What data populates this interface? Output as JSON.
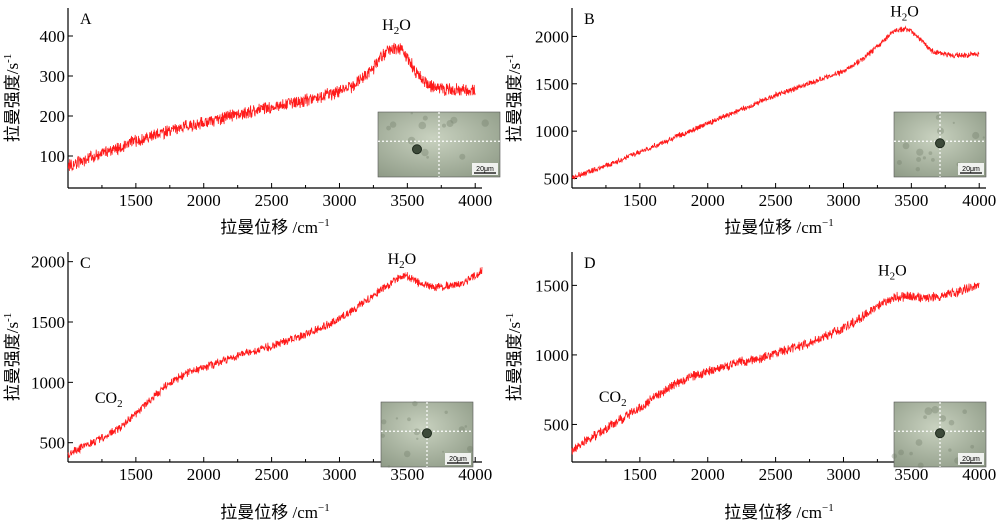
{
  "figure": {
    "xlabel": "拉曼位移 /cm",
    "xlabel_sup": "−1",
    "ylabel": "拉曼强度/s",
    "ylabel_sup": "-1",
    "scale_bar_label": "20μm",
    "spectrum_color": "#ff1a1a"
  },
  "chart_data": [
    {
      "type": "line",
      "panel": "A",
      "xlim": [
        1000,
        4050
      ],
      "ylim": [
        20,
        470
      ],
      "xticks": [
        1500,
        2000,
        2500,
        3000,
        3500,
        4000
      ],
      "yticks": [
        100,
        200,
        300,
        400
      ],
      "grid": false,
      "series": [
        {
          "x": [
            1000,
            1100,
            1200,
            1300,
            1400,
            1500,
            1600,
            1700,
            1800,
            1900,
            2000,
            2100,
            2200,
            2300,
            2400,
            2500,
            2600,
            2700,
            2800,
            2900,
            3000,
            3100,
            3200,
            3250,
            3300,
            3350,
            3400,
            3450,
            3500,
            3550,
            3600,
            3650,
            3700,
            3750,
            3800,
            3850,
            3900,
            3950,
            4000
          ],
          "y": [
            75,
            88,
            100,
            112,
            125,
            138,
            148,
            158,
            168,
            176,
            184,
            192,
            200,
            207,
            214,
            221,
            229,
            236,
            244,
            252,
            262,
            275,
            300,
            320,
            345,
            365,
            372,
            365,
            345,
            318,
            295,
            280,
            272,
            268,
            266,
            265,
            264,
            264,
            263
          ],
          "noise": 14
        }
      ],
      "annotations": [
        {
          "text": "H",
          "sub": "2",
          "tail": "O",
          "x": 3420,
          "y": 415
        }
      ]
    },
    {
      "type": "line",
      "panel": "B",
      "xlim": [
        1000,
        4050
      ],
      "ylim": [
        400,
        2300
      ],
      "xticks": [
        1500,
        2000,
        2500,
        3000,
        3500,
        4000
      ],
      "yticks": [
        500,
        1000,
        1500,
        2000
      ],
      "grid": false,
      "series": [
        {
          "x": [
            1000,
            1100,
            1200,
            1300,
            1400,
            1500,
            1600,
            1700,
            1800,
            1900,
            2000,
            2100,
            2200,
            2300,
            2400,
            2500,
            2600,
            2700,
            2800,
            2900,
            3000,
            3100,
            3200,
            3300,
            3350,
            3400,
            3450,
            3500,
            3550,
            3600,
            3650,
            3700,
            3750,
            3800,
            3850,
            3900,
            3950,
            4000
          ],
          "y": [
            510,
            560,
            610,
            660,
            720,
            780,
            840,
            900,
            960,
            1020,
            1080,
            1140,
            1200,
            1260,
            1320,
            1380,
            1430,
            1480,
            1530,
            1580,
            1630,
            1720,
            1830,
            1960,
            2030,
            2070,
            2080,
            2060,
            1990,
            1910,
            1850,
            1820,
            1810,
            1800,
            1800,
            1800,
            1810,
            1810
          ],
          "noise": 25
        }
      ],
      "annotations": [
        {
          "text": "H",
          "sub": "2",
          "tail": "O",
          "x": 3450,
          "y": 2210
        }
      ]
    },
    {
      "type": "line",
      "panel": "C",
      "xlim": [
        1000,
        4050
      ],
      "ylim": [
        340,
        2080
      ],
      "xticks": [
        1500,
        2000,
        2500,
        3000,
        3500,
        4000
      ],
      "yticks": [
        500,
        1000,
        1500,
        2000
      ],
      "grid": false,
      "series": [
        {
          "x": [
            1000,
            1100,
            1200,
            1300,
            1400,
            1500,
            1600,
            1700,
            1800,
            1900,
            2000,
            2100,
            2200,
            2300,
            2400,
            2500,
            2600,
            2700,
            2800,
            2900,
            3000,
            3100,
            3200,
            3300,
            3400,
            3450,
            3500,
            3550,
            3600,
            3650,
            3700,
            3750,
            3800,
            3850,
            3900,
            3950,
            4000,
            4050
          ],
          "y": [
            400,
            460,
            510,
            570,
            640,
            740,
            850,
            950,
            1030,
            1090,
            1120,
            1160,
            1200,
            1240,
            1270,
            1300,
            1340,
            1380,
            1420,
            1470,
            1530,
            1600,
            1680,
            1760,
            1840,
            1880,
            1880,
            1850,
            1820,
            1800,
            1790,
            1790,
            1800,
            1810,
            1820,
            1850,
            1880,
            1930
          ],
          "noise": 30
        }
      ],
      "annotations": [
        {
          "text": "H",
          "sub": "2",
          "tail": "O",
          "x": 3460,
          "y": 1980
        },
        {
          "text": "CO",
          "sub": "2",
          "tail": "",
          "x": 1300,
          "y": 830
        }
      ]
    },
    {
      "type": "line",
      "panel": "D",
      "xlim": [
        1000,
        4050
      ],
      "ylim": [
        230,
        1740
      ],
      "xticks": [
        1500,
        2000,
        2500,
        3000,
        3500,
        4000
      ],
      "yticks": [
        500,
        1000,
        1500
      ],
      "grid": false,
      "series": [
        {
          "x": [
            1000,
            1100,
            1200,
            1300,
            1400,
            1500,
            1600,
            1700,
            1800,
            1900,
            2000,
            2100,
            2200,
            2300,
            2400,
            2500,
            2600,
            2700,
            2800,
            2900,
            3000,
            3100,
            3200,
            3300,
            3400,
            3500,
            3600,
            3700,
            3800,
            3900,
            4000
          ],
          "y": [
            310,
            380,
            440,
            500,
            560,
            620,
            690,
            750,
            810,
            850,
            880,
            910,
            940,
            960,
            980,
            1010,
            1040,
            1070,
            1110,
            1150,
            1190,
            1250,
            1320,
            1380,
            1420,
            1420,
            1410,
            1420,
            1440,
            1470,
            1510
          ],
          "noise": 30
        }
      ],
      "annotations": [
        {
          "text": "H",
          "sub": "2",
          "tail": "O",
          "x": 3360,
          "y": 1570
        },
        {
          "text": "CO",
          "sub": "2",
          "tail": "",
          "x": 1300,
          "y": 660
        }
      ]
    }
  ]
}
